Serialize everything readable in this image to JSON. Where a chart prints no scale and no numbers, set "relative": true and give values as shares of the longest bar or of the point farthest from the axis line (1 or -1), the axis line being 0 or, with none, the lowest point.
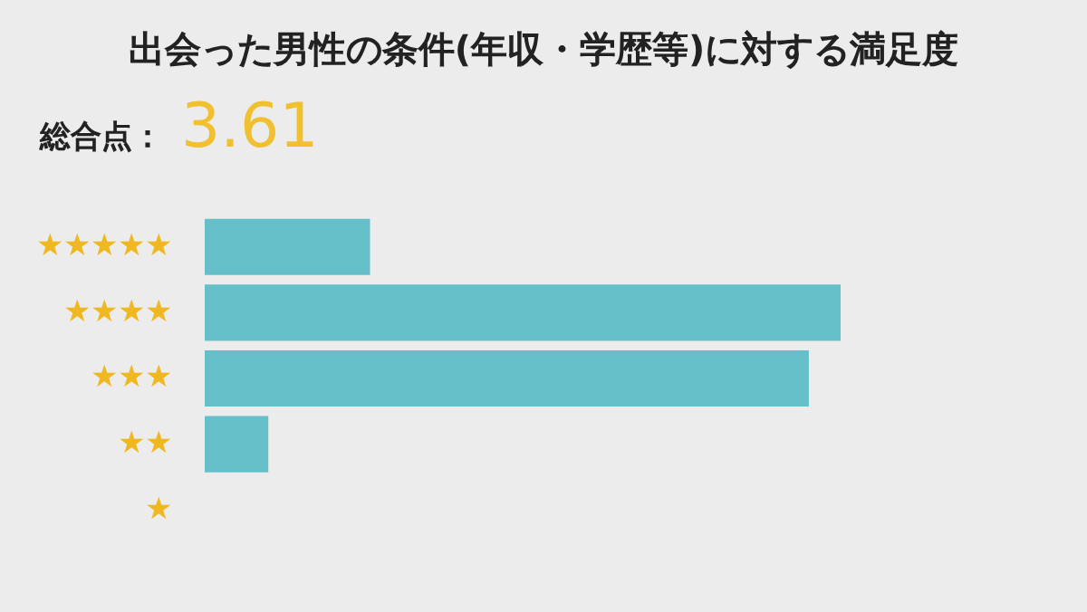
{
  "chart_data": {
    "type": "bar",
    "orientation": "horizontal",
    "relative": true,
    "title": "出会った男性の条件(年収・学歴等)に対する満足度",
    "annotations": [
      "総合点：",
      "3.61"
    ],
    "categories": [
      "★★★★★",
      "★★★★",
      "★★★",
      "★★",
      "★"
    ],
    "values": [
      0.26,
      1,
      0.95,
      0.1,
      0
    ],
    "color": "#64bfc9",
    "legend": false
  }
}
